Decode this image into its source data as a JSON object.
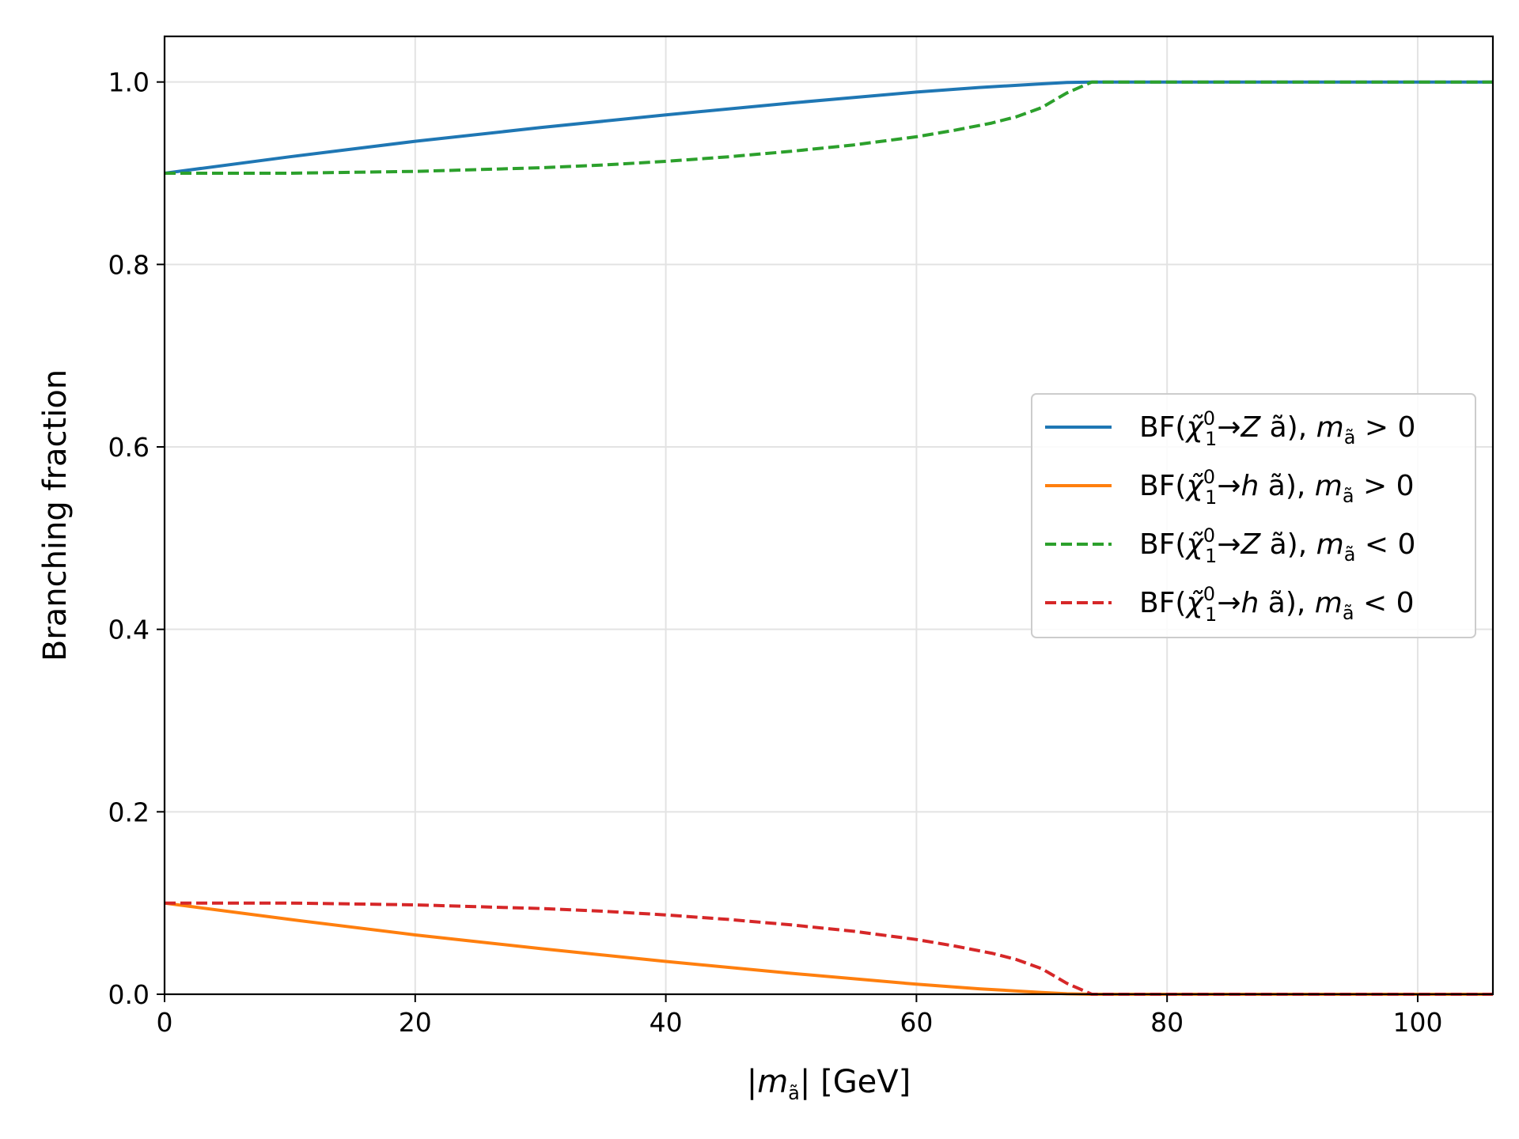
{
  "chart_data": {
    "type": "line",
    "xlabel": "|mă| [GeV]",
    "xlabel_parts": {
      "open": "|",
      "var": "m",
      "sub": "ã",
      "close": "| [GeV]"
    },
    "ylabel": "Branching fraction",
    "xlim": [
      0,
      106
    ],
    "ylim": [
      0,
      1.05
    ],
    "xticks": [
      0,
      20,
      40,
      60,
      80,
      100
    ],
    "xtick_labels": [
      "0",
      "20",
      "40",
      "60",
      "80",
      "100"
    ],
    "yticks": [
      0.0,
      0.2,
      0.4,
      0.6,
      0.8,
      1.0
    ],
    "ytick_labels": [
      "0.0",
      "0.2",
      "0.4",
      "0.6",
      "0.8",
      "1.0"
    ],
    "grid": true,
    "legend_position": "center-right",
    "series": [
      {
        "name": "BF(χ̃₁⁰ → Z ã), mã > 0",
        "legend": {
          "prod": "Z",
          "sign": ">"
        },
        "color": "#1f77b4",
        "dash": "solid",
        "x": [
          0,
          10,
          20,
          30,
          40,
          50,
          60,
          65,
          70,
          72,
          74,
          80,
          90,
          100,
          106
        ],
        "y": [
          0.9,
          0.918,
          0.935,
          0.95,
          0.964,
          0.977,
          0.989,
          0.994,
          0.998,
          0.9995,
          1.0,
          1.0,
          1.0,
          1.0,
          1.0
        ]
      },
      {
        "name": "BF(χ̃₁⁰ → h ã), mã > 0",
        "legend": {
          "prod": "h",
          "sign": ">"
        },
        "color": "#ff7f0e",
        "dash": "solid",
        "x": [
          0,
          10,
          20,
          30,
          40,
          50,
          60,
          65,
          70,
          72,
          74,
          80,
          90,
          100,
          106
        ],
        "y": [
          0.1,
          0.082,
          0.065,
          0.05,
          0.036,
          0.023,
          0.011,
          0.006,
          0.002,
          0.0005,
          0.0,
          0.0,
          0.0,
          0.0,
          0.0
        ]
      },
      {
        "name": "BF(χ̃₁⁰ → Z ã), mã < 0",
        "legend": {
          "prod": "Z",
          "sign": "<"
        },
        "color": "#2ca02c",
        "dash": "dashed",
        "x": [
          0,
          5,
          10,
          15,
          20,
          25,
          30,
          35,
          40,
          45,
          50,
          55,
          60,
          63,
          66,
          68,
          70,
          71,
          72,
          73,
          74,
          80,
          90,
          100,
          106
        ],
        "y": [
          0.9,
          0.9,
          0.9,
          0.901,
          0.902,
          0.904,
          0.906,
          0.909,
          0.913,
          0.918,
          0.924,
          0.931,
          0.94,
          0.947,
          0.955,
          0.962,
          0.972,
          0.98,
          0.988,
          0.994,
          1.0,
          1.0,
          1.0,
          1.0,
          1.0
        ]
      },
      {
        "name": "BF(χ̃₁⁰ → h ã), mã < 0",
        "legend": {
          "prod": "h",
          "sign": "<"
        },
        "color": "#d62728",
        "dash": "dashed",
        "x": [
          0,
          5,
          10,
          15,
          20,
          25,
          30,
          35,
          40,
          45,
          50,
          55,
          60,
          63,
          66,
          68,
          70,
          71,
          72,
          73,
          74,
          80,
          90,
          100,
          106
        ],
        "y": [
          0.1,
          0.1,
          0.1,
          0.099,
          0.098,
          0.096,
          0.094,
          0.091,
          0.087,
          0.082,
          0.076,
          0.069,
          0.06,
          0.053,
          0.045,
          0.038,
          0.028,
          0.02,
          0.012,
          0.006,
          0.0,
          0.0,
          0.0,
          0.0,
          0.0
        ]
      }
    ]
  }
}
